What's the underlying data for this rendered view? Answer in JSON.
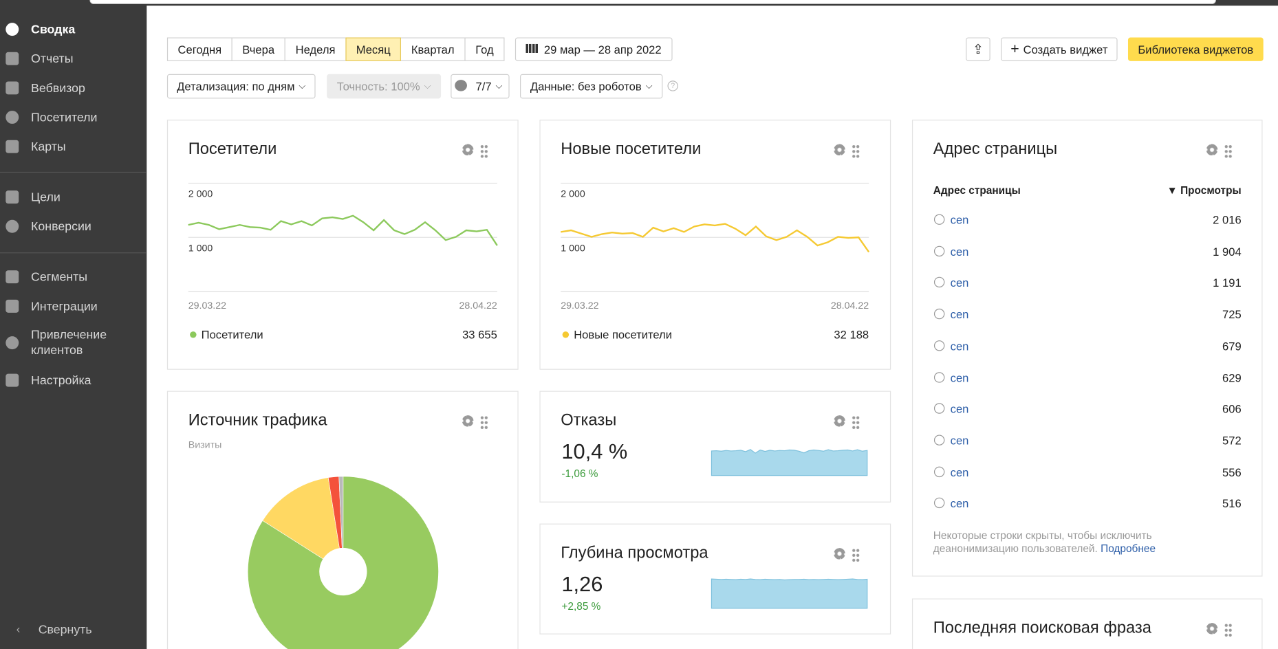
{
  "sidebar": {
    "items": [
      "Сводка",
      "Отчеты",
      "Вебвизор",
      "Посетители",
      "Карты",
      "Цели",
      "Конверсии",
      "Сегменты",
      "Интеграции",
      "Привлечение клиентов",
      "Настройка"
    ],
    "active": 0,
    "collapse": "Свернуть"
  },
  "toolbar": {
    "periods": [
      "Сегодня",
      "Вчера",
      "Неделя",
      "Месяц",
      "Квартал",
      "Год"
    ],
    "active_period": 3,
    "date_range": "29 мар — 28 апр 2022",
    "create_widget": "Создать виджет",
    "library": "Библиотека виджетов",
    "filters": [
      "Детализация: по дням",
      "Точность: 100%",
      "7/7",
      "Данные: без роботов"
    ]
  },
  "chart_data": [
    {
      "type": "line",
      "title": "Посетители",
      "categories": [
        "29.03.22",
        null,
        null,
        null,
        null,
        null,
        null,
        null,
        null,
        null,
        null,
        null,
        null,
        null,
        null,
        null,
        null,
        null,
        null,
        null,
        null,
        null,
        null,
        null,
        null,
        null,
        null,
        null,
        null,
        null,
        "28.04.22"
      ],
      "series": [
        {
          "name": "Посетители",
          "color": "#8cc95c",
          "values": [
            1230,
            1270,
            1230,
            1150,
            1190,
            1230,
            1190,
            1180,
            1140,
            1300,
            1240,
            1300,
            1220,
            1350,
            1370,
            1340,
            1400,
            1280,
            1130,
            1320,
            1130,
            1060,
            1140,
            1280,
            1130,
            950,
            1010,
            1130,
            1110,
            1140,
            850
          ]
        }
      ],
      "total": "33 655",
      "ylim": [
        0,
        2000
      ],
      "yticks": [
        {
          "value": 1000,
          "label": "1 000"
        },
        {
          "value": 2000,
          "label": "2 000"
        }
      ],
      "grid": true
    },
    {
      "type": "line",
      "title": "Новые посетители",
      "categories": [
        "29.03.22",
        null,
        null,
        null,
        null,
        null,
        null,
        null,
        null,
        null,
        null,
        null,
        null,
        null,
        null,
        null,
        null,
        null,
        null,
        null,
        null,
        null,
        null,
        null,
        null,
        null,
        null,
        null,
        null,
        null,
        "28.04.22"
      ],
      "series": [
        {
          "name": "Новые посетители",
          "color": "#f5c932",
          "values": [
            1100,
            1130,
            1070,
            1010,
            1060,
            1090,
            1070,
            1080,
            1010,
            1180,
            1110,
            1170,
            1100,
            1200,
            1240,
            1220,
            1250,
            1160,
            1040,
            1200,
            1020,
            950,
            1010,
            1130,
            1010,
            850,
            910,
            1010,
            990,
            1000,
            730
          ]
        }
      ],
      "total": "32 188",
      "ylim": [
        0,
        2000
      ],
      "yticks": [
        {
          "value": 1000,
          "label": "1 000"
        },
        {
          "value": 2000,
          "label": "2 000"
        }
      ],
      "grid": true
    },
    {
      "type": "pie",
      "title": "Источник трафика",
      "subtitle": "Визиты",
      "values": [
        84,
        13.5,
        1.8,
        0.7
      ],
      "colors": [
        "#98cb60",
        "#ffd862",
        "#f4523b",
        "#b9b9b9"
      ]
    },
    {
      "type": "area",
      "title": "Отказы",
      "value_text": "10,4 %",
      "change": "-1,06 %",
      "color": "#a9d9ec",
      "values": [
        10.2,
        10.3,
        10.1,
        10.4,
        10.2,
        10.3,
        10.5,
        9.9,
        10.8,
        9.3,
        10.6,
        10.0,
        10.5,
        10.2,
        10.4,
        10.3,
        10.6,
        10.5,
        10.1,
        9.4,
        10.3,
        10.6,
        10.4,
        10.1,
        10.7,
        10.2,
        10.3,
        10.5,
        10.6,
        10.2,
        10.7,
        10.1,
        10.4
      ]
    },
    {
      "type": "area",
      "title": "Глубина просмотра",
      "value_text": "1,26",
      "change": "+2,85 %",
      "color": "#a9d9ec",
      "values": [
        1.28,
        1.27,
        1.26,
        1.27,
        1.26,
        1.25,
        1.27,
        1.26,
        1.28,
        1.26,
        1.25,
        1.27,
        1.26,
        1.25,
        1.26,
        1.24,
        1.25,
        1.26,
        1.26,
        1.27,
        1.25,
        1.26,
        1.25,
        1.26,
        1.27,
        1.26,
        1.25,
        1.26,
        1.27,
        1.28,
        1.26,
        1.25,
        1.27
      ]
    }
  ],
  "pages_widget": {
    "title": "Адрес страницы",
    "columns": [
      "Адрес страницы",
      "▼ Просмотры"
    ],
    "rows": [
      [
        "cen",
        "2 016"
      ],
      [
        "cen",
        "1 904"
      ],
      [
        "cen",
        "1 191"
      ],
      [
        "cen",
        "725"
      ],
      [
        "cen",
        "679"
      ],
      [
        "cen",
        "629"
      ],
      [
        "cen",
        "606"
      ],
      [
        "cen",
        "572"
      ],
      [
        "cen",
        "556"
      ],
      [
        "cen",
        "516"
      ]
    ],
    "note": "Некоторые строки скрыты, чтобы исключить деанонимизацию пользователей.",
    "note_link": "Подробнее"
  },
  "search_widget": {
    "title": "Последняя поисковая фраза"
  }
}
